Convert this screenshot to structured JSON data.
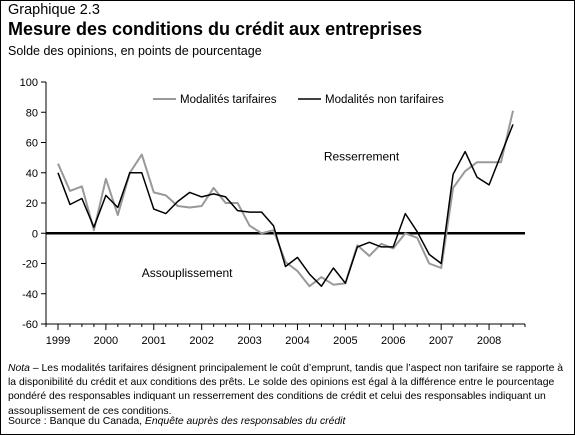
{
  "header": {
    "kicker": "Graphique 2.3",
    "title": "Mesure des conditions du crédit aux entreprises",
    "unit": "Solde des opinions, en points de pourcentage"
  },
  "footer": {
    "note_lead": "Nota",
    "note_body": " – Les modalités tarifaires désignent principalement le coût d’emprunt, tandis que l’aspect non tarifaire se rapporte à la disponibilité du crédit et aux conditions des prêts. Le solde des opinions est égal à la différence entre le pourcentage pondéré des responsables indiquant un resserrement des conditions de crédit et celui des responsables indiquant un assouplissement de ces conditions.",
    "source_lead": "Source : Banque du Canada, ",
    "source_title": "Enquête auprès des responsables du crédit"
  },
  "chart_data": {
    "type": "line",
    "ylim": [
      -60,
      100
    ],
    "yticks": [
      -60,
      -40,
      -20,
      0,
      20,
      40,
      60,
      80,
      100
    ],
    "xlim": [
      1998.75,
      2008.75
    ],
    "xticks": [
      1999,
      2000,
      2001,
      2002,
      2003,
      2004,
      2005,
      2006,
      2007,
      2008
    ],
    "grid": false,
    "legend_position": "top",
    "annotations": [
      {
        "text": "Resserrement",
        "x": 2004.55,
        "y": 48
      },
      {
        "text": "Assouplissement",
        "x": 2000.75,
        "y": -29
      }
    ],
    "x": [
      1999.0,
      1999.25,
      1999.5,
      1999.75,
      2000.0,
      2000.25,
      2000.5,
      2000.75,
      2001.0,
      2001.25,
      2001.5,
      2001.75,
      2002.0,
      2002.25,
      2002.5,
      2002.75,
      2003.0,
      2003.25,
      2003.5,
      2003.75,
      2004.0,
      2004.25,
      2004.5,
      2004.75,
      2005.0,
      2005.25,
      2005.5,
      2005.75,
      2006.0,
      2006.25,
      2006.5,
      2006.75,
      2007.0,
      2007.25,
      2007.5,
      2007.75,
      2008.0,
      2008.25,
      2008.5
    ],
    "series": [
      {
        "name": "Modalités tarifaires",
        "color": "#999999",
        "values": [
          46,
          28,
          31,
          2,
          36,
          12,
          40,
          52,
          27,
          25,
          18,
          17,
          18,
          30,
          20,
          20,
          5,
          0,
          2,
          -19,
          -25,
          -35,
          -29,
          -34,
          -33,
          -8,
          -15,
          -7,
          -10,
          0,
          -3,
          -20,
          -23,
          30,
          41,
          47,
          47,
          47,
          81
        ]
      },
      {
        "name": "Modalités non tarifaires",
        "color": "#000000",
        "values": [
          40,
          19,
          23,
          4,
          25,
          17,
          40,
          40,
          16,
          13,
          21,
          27,
          24,
          26,
          24,
          15,
          14,
          14,
          5,
          -22,
          -16,
          -27,
          -35,
          -23,
          -33,
          -9,
          -6,
          -9,
          -9,
          13,
          1,
          -14,
          -20,
          39,
          54,
          37,
          32,
          52,
          72
        ]
      }
    ]
  }
}
